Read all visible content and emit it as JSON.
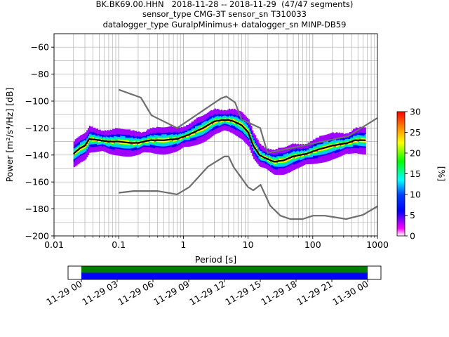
{
  "header": {
    "title_line1": "BK.BK69.00.HHN   2018-11-28 -- 2018-11-29  (47/47 segments)",
    "title_line2": "sensor_type CMG-3T sensor_sn T310033",
    "title_line3": "datalogger_type GuralpMinimus+ datalogger_sn MINP-DB59"
  },
  "chart_data": [
    {
      "type": "heatmap",
      "subtype": "probabilistic power spectral density",
      "xlabel": "Period [s]",
      "ylabel": "Power [m²/s⁴/Hz] [dB]",
      "x_scale": "log",
      "xlim": [
        0.01,
        1000
      ],
      "ylim": [
        -200,
        -50
      ],
      "x_ticks": [
        "0.01",
        "0.1",
        "1",
        "10",
        "100",
        "1000"
      ],
      "y_ticks": [
        "−200",
        "−180",
        "−160",
        "−140",
        "−120",
        "−100",
        "−80",
        "−60"
      ],
      "grid": true,
      "colorbar": {
        "label": "[%]",
        "range": [
          0,
          30
        ],
        "ticks": [
          "0",
          "5",
          "10",
          "15",
          "20",
          "25",
          "30"
        ],
        "colormap": "pqlx (white-magenta-blue-cyan-green-yellow-red)"
      },
      "density_mode_curve": {
        "period": [
          0.02,
          0.025,
          0.03,
          0.035,
          0.05,
          0.07,
          0.1,
          0.15,
          0.2,
          0.3,
          0.5,
          0.8,
          1.2,
          2,
          3,
          4,
          5,
          6,
          8,
          10,
          12,
          15,
          18,
          25,
          35,
          50,
          80,
          120,
          200,
          350,
          450,
          550,
          650
        ],
        "power_db": [
          -139,
          -135,
          -133,
          -128,
          -129,
          -130,
          -130,
          -131,
          -131,
          -129,
          -129,
          -128,
          -125,
          -120,
          -115,
          -114,
          -114,
          -115,
          -118,
          -123,
          -133,
          -140,
          -142,
          -145,
          -144,
          -141,
          -139,
          -136,
          -133,
          -131,
          -129,
          -129,
          -129
        ]
      },
      "nhnm": {
        "name": "NHNM",
        "period": [
          0.1,
          0.22,
          0.32,
          0.8,
          3.8,
          4.6,
          6.3,
          7.9,
          15.4,
          20,
          354.8,
          1000
        ],
        "power_db": [
          -91.5,
          -97.4,
          -110.5,
          -120,
          -98,
          -96.5,
          -101,
          -113.5,
          -120,
          -138.5,
          -126,
          -112.5
        ]
      },
      "nlnm": {
        "name": "NLNM",
        "period": [
          0.1,
          0.17,
          0.4,
          0.8,
          1.24,
          2.4,
          4.3,
          5,
          6,
          10,
          12,
          15.6,
          21.9,
          31.6,
          45,
          70,
          101,
          154,
          328,
          600,
          1000
        ],
        "power_db": [
          -168,
          -166.7,
          -166.7,
          -169.2,
          -163.7,
          -148.6,
          -141.1,
          -141.1,
          -149,
          -163.8,
          -166.2,
          -162.1,
          -177.5,
          -185,
          -187.5,
          -187.5,
          -185,
          -185,
          -187.5,
          -184.4,
          -178
        ]
      }
    },
    {
      "type": "timeline",
      "description": "data coverage",
      "x_ticks": [
        "11-29 00",
        "11-29 03",
        "11-29 06",
        "11-29 09",
        "11-29 12",
        "11-29 15",
        "11-29 18",
        "11-29 21",
        "11-30 00"
      ],
      "colors": {
        "coverage": "#008000",
        "used": "#0000ff"
      }
    }
  ]
}
